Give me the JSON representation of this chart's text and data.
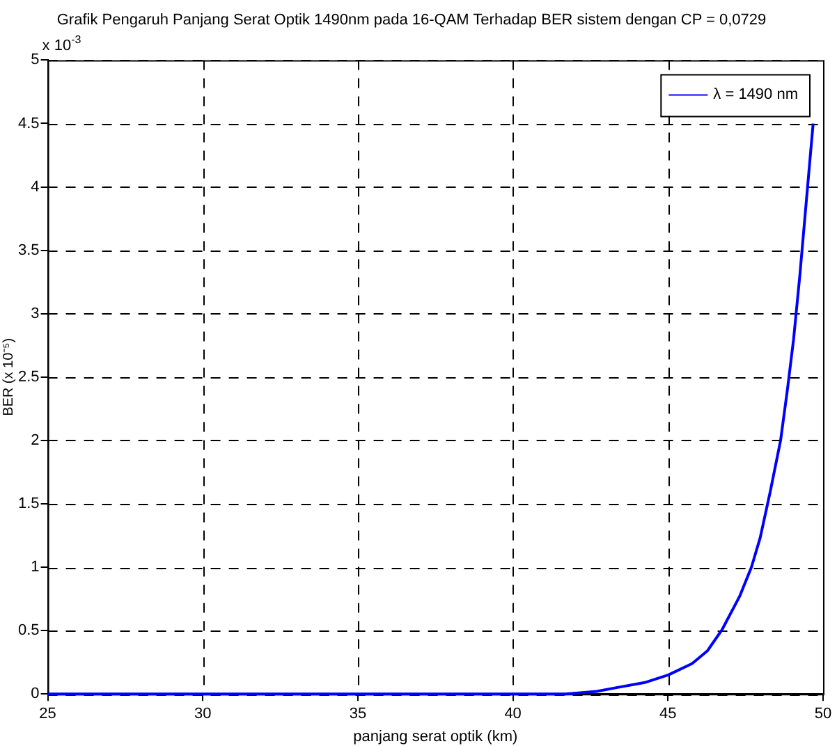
{
  "chart_data": {
    "type": "line",
    "title": "Grafik Pengaruh Panjang Serat Optik 1490nm pada 16-QAM Terhadap BER sistem dengan CP = 0,0729",
    "xlabel": "panjang serat optik (km)",
    "ylabel": "BER (x 10⁻⁵)",
    "annotations": [
      "x 10$^{-3}$"
    ],
    "series": [
      {
        "name": "λ = 1490 nm",
        "color": "#0000ff",
        "x": [
          25,
          30,
          35,
          40,
          41.7,
          42.7,
          43.34,
          44.25,
          45.01,
          45.78,
          46.27,
          46.75,
          47.31,
          47.69,
          47.97,
          48.3,
          48.63,
          48.85,
          49.05,
          49.25,
          49.5,
          49.68
        ],
        "values": [
          0,
          0,
          0,
          0,
          0,
          0.02,
          0.05,
          0.09,
          0.15,
          0.24,
          0.34,
          0.51,
          0.77,
          1.0,
          1.23,
          1.6,
          2.0,
          2.4,
          2.8,
          3.3,
          4.0,
          4.5
        ]
      }
    ],
    "xlim": [
      25,
      50
    ],
    "xticks": [
      25,
      30,
      35,
      40,
      45,
      50
    ],
    "ylim": [
      0,
      5
    ],
    "yticks": [
      0,
      0.5,
      1,
      1.5,
      2,
      2.5,
      3,
      3.5,
      4,
      4.5,
      5
    ],
    "grid": true,
    "legend": "top right",
    "marker": "none",
    "line_style": "solid"
  }
}
